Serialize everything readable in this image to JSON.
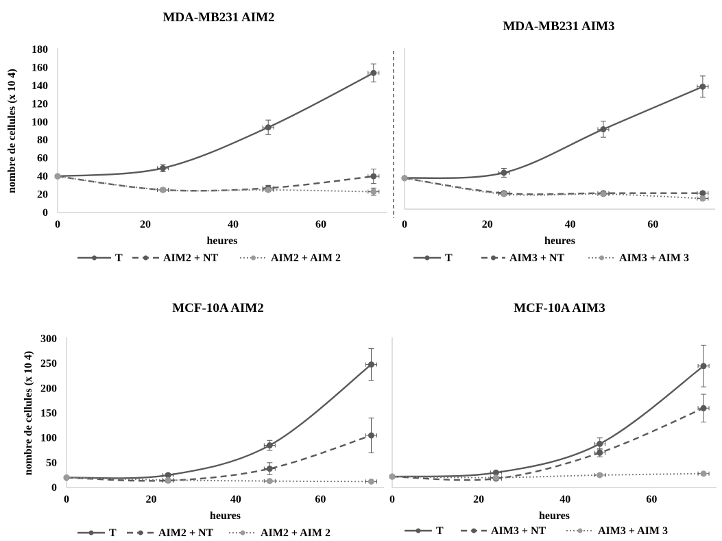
{
  "chart_data": [
    {
      "type": "line",
      "title": "MDA-MB231 AIM2",
      "xlabel": "heures",
      "ylabel": "nombre de cellules (x 10 4)",
      "xlim": [
        0,
        75
      ],
      "xticks": [
        0,
        20,
        40,
        60
      ],
      "ylim": [
        0,
        180
      ],
      "yticks": [
        0,
        20,
        40,
        60,
        80,
        100,
        120,
        140,
        160,
        180
      ],
      "x": [
        0,
        24,
        48,
        72
      ],
      "legend_position": "bottom",
      "grid": false,
      "series": [
        {
          "name": "T",
          "style": "solid",
          "values": [
            40,
            49,
            94,
            154
          ],
          "errors": [
            0,
            4,
            8,
            10
          ]
        },
        {
          "name": "AIM2 + NT",
          "style": "dashed",
          "values": [
            40,
            25,
            27,
            40
          ],
          "errors": [
            0,
            2,
            3,
            8
          ]
        },
        {
          "name": "AIM2 + AIM 2",
          "style": "dotted",
          "values": [
            40,
            25,
            25,
            23
          ],
          "errors": [
            0,
            2,
            2,
            4
          ]
        }
      ]
    },
    {
      "type": "line",
      "title": "MDA-MB231 AIM3",
      "xlabel": "heures",
      "ylabel": "",
      "xlim": [
        0,
        75
      ],
      "xticks": [
        0,
        20,
        40,
        60
      ],
      "ylim": [
        0,
        180
      ],
      "yticks": [],
      "x": [
        0,
        24,
        48,
        72
      ],
      "legend_position": "bottom",
      "grid": false,
      "series": [
        {
          "name": "T",
          "style": "solid",
          "values": [
            35,
            41,
            90,
            138
          ],
          "errors": [
            0,
            5,
            9,
            12
          ]
        },
        {
          "name": "AIM3 + NT",
          "style": "dashed",
          "values": [
            35,
            18,
            18,
            18
          ],
          "errors": [
            0,
            2,
            2,
            2
          ]
        },
        {
          "name": "AIM3 + AIM 3",
          "style": "dotted",
          "values": [
            35,
            17,
            17,
            12
          ],
          "errors": [
            0,
            2,
            2,
            2
          ]
        }
      ]
    },
    {
      "type": "line",
      "title": "MCF-10A AIM2",
      "xlabel": "heures",
      "ylabel": "nombre de cellules (x 10 4)",
      "xlim": [
        0,
        75
      ],
      "xticks": [
        0,
        20,
        40,
        60
      ],
      "ylim": [
        0,
        300
      ],
      "yticks": [
        0,
        50,
        100,
        150,
        200,
        250,
        300
      ],
      "x": [
        0,
        24,
        48,
        72
      ],
      "legend_position": "bottom",
      "grid": false,
      "series": [
        {
          "name": "T",
          "style": "solid",
          "values": [
            20,
            25,
            85,
            248
          ],
          "errors": [
            0,
            3,
            10,
            32
          ]
        },
        {
          "name": "AIM2 + NT",
          "style": "dashed",
          "values": [
            20,
            14,
            38,
            105
          ],
          "errors": [
            0,
            3,
            12,
            35
          ]
        },
        {
          "name": "AIM2 + AIM 2",
          "style": "dotted",
          "values": [
            20,
            15,
            13,
            12
          ],
          "errors": [
            0,
            2,
            2,
            2
          ]
        }
      ]
    },
    {
      "type": "line",
      "title": "MCF-10A AIM3",
      "xlabel": "heures",
      "ylabel": "",
      "xlim": [
        0,
        75
      ],
      "xticks": [
        0,
        20,
        40,
        60
      ],
      "ylim": [
        0,
        300
      ],
      "yticks": [],
      "x": [
        0,
        24,
        48,
        72
      ],
      "legend_position": "bottom",
      "grid": false,
      "series": [
        {
          "name": "T",
          "style": "solid",
          "values": [
            22,
            30,
            88,
            245
          ],
          "errors": [
            0,
            3,
            12,
            42
          ]
        },
        {
          "name": "AIM3 + NT",
          "style": "dashed",
          "values": [
            22,
            18,
            70,
            160
          ],
          "errors": [
            0,
            3,
            8,
            28
          ]
        },
        {
          "name": "AIM3 + AIM 3",
          "style": "dotted",
          "values": [
            22,
            20,
            25,
            28
          ],
          "errors": [
            0,
            2,
            3,
            3
          ]
        }
      ]
    }
  ],
  "colors": {
    "solid_series": "#595959",
    "dashed_series": "#595959",
    "dotted_series": "#7f7f7f",
    "marker_light": "#9a9a9a",
    "axis": "#bfbfbf"
  }
}
